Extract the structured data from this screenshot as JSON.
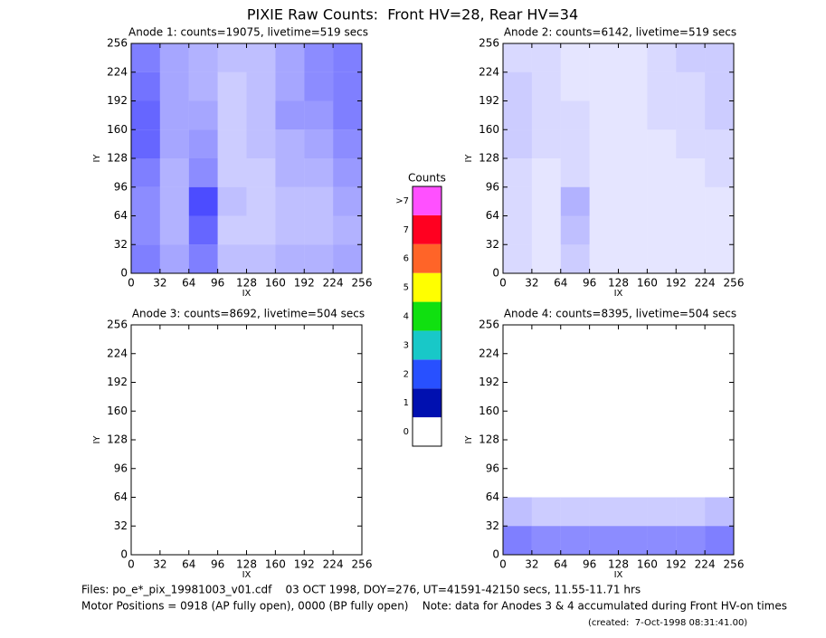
{
  "title": "PIXIE Raw Counts:  Front HV=28, Rear HV=34",
  "chart_data": [
    {
      "type": "heatmap",
      "title": "Anode 1: counts=19075, livetime=519 secs",
      "xlabel": "IX",
      "ylabel": "IY",
      "color": "#0000ff",
      "xlim": [
        0,
        256
      ],
      "ylim": [
        0,
        256
      ],
      "xticks": [
        0,
        32,
        64,
        96,
        128,
        160,
        192,
        224,
        256
      ],
      "yticks": [
        0,
        32,
        64,
        96,
        128,
        160,
        192,
        224,
        256
      ],
      "x_bins": [
        0,
        32,
        64,
        96,
        128,
        160,
        192,
        224,
        256
      ],
      "y_bins": [
        0,
        32,
        64,
        96,
        128,
        160,
        192,
        224,
        256
      ],
      "values": [
        [
          0.5,
          0.35,
          0.5,
          0.25,
          0.25,
          0.3,
          0.3,
          0.35
        ],
        [
          0.45,
          0.3,
          0.6,
          0.2,
          0.2,
          0.25,
          0.25,
          0.3
        ],
        [
          0.45,
          0.3,
          0.7,
          0.25,
          0.2,
          0.25,
          0.25,
          0.35
        ],
        [
          0.5,
          0.3,
          0.45,
          0.2,
          0.2,
          0.3,
          0.3,
          0.4
        ],
        [
          0.6,
          0.35,
          0.4,
          0.2,
          0.25,
          0.3,
          0.35,
          0.45
        ],
        [
          0.6,
          0.35,
          0.35,
          0.2,
          0.25,
          0.4,
          0.4,
          0.5
        ],
        [
          0.55,
          0.35,
          0.3,
          0.2,
          0.25,
          0.35,
          0.45,
          0.5
        ],
        [
          0.5,
          0.35,
          0.3,
          0.25,
          0.25,
          0.35,
          0.45,
          0.5
        ]
      ]
    },
    {
      "type": "heatmap",
      "title": "Anode 2: counts=6142, livetime=519 secs",
      "xlabel": "IX",
      "ylabel": "IY",
      "color": "#0000ff",
      "xlim": [
        0,
        256
      ],
      "ylim": [
        0,
        256
      ],
      "xticks": [
        0,
        32,
        64,
        96,
        128,
        160,
        192,
        224,
        256
      ],
      "yticks": [
        0,
        32,
        64,
        96,
        128,
        160,
        192,
        224,
        256
      ],
      "x_bins": [
        0,
        32,
        64,
        96,
        128,
        160,
        192,
        224,
        256
      ],
      "y_bins": [
        0,
        32,
        64,
        96,
        128,
        160,
        192,
        224,
        256
      ],
      "values": [
        [
          0.15,
          0.1,
          0.2,
          0.1,
          0.1,
          0.1,
          0.1,
          0.1
        ],
        [
          0.15,
          0.1,
          0.25,
          0.1,
          0.1,
          0.1,
          0.1,
          0.1
        ],
        [
          0.15,
          0.1,
          0.3,
          0.1,
          0.1,
          0.1,
          0.1,
          0.1
        ],
        [
          0.15,
          0.1,
          0.15,
          0.1,
          0.1,
          0.1,
          0.1,
          0.15
        ],
        [
          0.2,
          0.15,
          0.15,
          0.1,
          0.1,
          0.1,
          0.15,
          0.15
        ],
        [
          0.2,
          0.15,
          0.15,
          0.1,
          0.1,
          0.15,
          0.15,
          0.2
        ],
        [
          0.2,
          0.15,
          0.1,
          0.1,
          0.1,
          0.15,
          0.15,
          0.2
        ],
        [
          0.15,
          0.15,
          0.1,
          0.1,
          0.1,
          0.15,
          0.2,
          0.2
        ]
      ]
    },
    {
      "type": "heatmap",
      "title": "Anode 3: counts=8692, livetime=504 secs",
      "xlabel": "IX",
      "ylabel": "IY",
      "color": "#0000ff",
      "xlim": [
        0,
        256
      ],
      "ylim": [
        0,
        256
      ],
      "xticks": [
        0,
        32,
        64,
        96,
        128,
        160,
        192,
        224,
        256
      ],
      "yticks": [
        0,
        32,
        64,
        96,
        128,
        160,
        192,
        224,
        256
      ],
      "x_bins": [
        0,
        32,
        64,
        96,
        128,
        160,
        192,
        224,
        256
      ],
      "y_bins": [
        0,
        32,
        64,
        96,
        128,
        160,
        192,
        224,
        256
      ],
      "values": [
        [
          0,
          0,
          0,
          0,
          0,
          0,
          0,
          0
        ],
        [
          0,
          0,
          0,
          0,
          0,
          0,
          0,
          0
        ],
        [
          0,
          0,
          0,
          0,
          0,
          0,
          0,
          0
        ],
        [
          0,
          0,
          0,
          0,
          0,
          0,
          0,
          0
        ],
        [
          0,
          0,
          0,
          0,
          0,
          0,
          0,
          0
        ],
        [
          0,
          0,
          0,
          0,
          0,
          0,
          0,
          0
        ],
        [
          0,
          0,
          0,
          0,
          0,
          0,
          0,
          0
        ],
        [
          0,
          0,
          0,
          0,
          0,
          0,
          0,
          0
        ]
      ]
    },
    {
      "type": "heatmap",
      "title": "Anode 4: counts=8395, livetime=504 secs",
      "xlabel": "IX",
      "ylabel": "IY",
      "color": "#0000ff",
      "xlim": [
        0,
        256
      ],
      "ylim": [
        0,
        256
      ],
      "xticks": [
        0,
        32,
        64,
        96,
        128,
        160,
        192,
        224,
        256
      ],
      "yticks": [
        0,
        32,
        64,
        96,
        128,
        160,
        192,
        224,
        256
      ],
      "x_bins": [
        0,
        32,
        64,
        96,
        128,
        160,
        192,
        224,
        256
      ],
      "y_bins": [
        0,
        32,
        64,
        96,
        128,
        160,
        192,
        224,
        256
      ],
      "values": [
        [
          0.5,
          0.45,
          0.45,
          0.45,
          0.45,
          0.45,
          0.45,
          0.5
        ],
        [
          0.25,
          0.2,
          0.2,
          0.2,
          0.2,
          0.2,
          0.2,
          0.25
        ],
        [
          0,
          0,
          0,
          0,
          0,
          0,
          0,
          0
        ],
        [
          0,
          0,
          0,
          0,
          0,
          0,
          0,
          0
        ],
        [
          0,
          0,
          0,
          0,
          0,
          0,
          0,
          0
        ],
        [
          0,
          0,
          0,
          0,
          0,
          0,
          0,
          0
        ],
        [
          0,
          0,
          0,
          0,
          0,
          0,
          0,
          0
        ],
        [
          0,
          0,
          0,
          0,
          0,
          0,
          0,
          0
        ]
      ]
    }
  ],
  "colorbar": {
    "title": "Counts",
    "labels": [
      "0",
      "1",
      "2",
      "3",
      "4",
      "5",
      "6",
      "7",
      ">7"
    ],
    "colors": [
      "#ffffff",
      "#0010b0",
      "#2850ff",
      "#18c8c8",
      "#10e010",
      "#ffff00",
      "#ff6428",
      "#ff0020",
      "#ff50ff"
    ]
  },
  "footer": [
    "Files: po_e*_pix_19981003_v01.cdf    03 OCT 1998, DOY=276, UT=41591-42150 secs, 11.55-11.71 hrs",
    "Motor Positions = 0918 (AP fully open), 0000 (BP fully open)    Note: data for Anodes 3 & 4 accumulated during Front HV-on times",
    "(created:  7-Oct-1998 08:31:41.00)"
  ]
}
